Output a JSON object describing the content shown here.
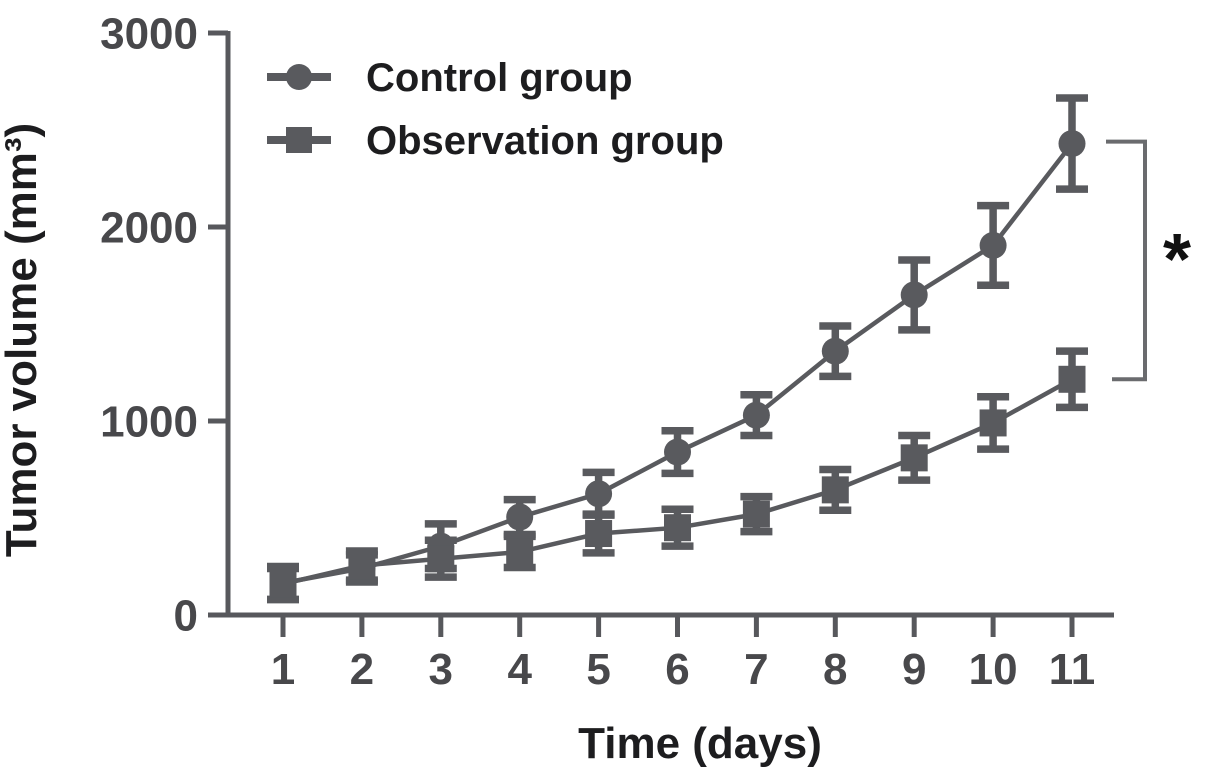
{
  "figure": {
    "background": "#ffffff",
    "series_color": "#595a5e",
    "axis_color": "#57585c",
    "tick_label_color": "#48484b",
    "title_color": "#1d1d1f",
    "bracket_color": "#6a6b6e",
    "significance_color": "#111111"
  },
  "chart_data": {
    "type": "line",
    "title": "",
    "xlabel": "Time (days)",
    "ylabel": "Tumor volume (mm³)",
    "x": [
      1,
      2,
      3,
      4,
      5,
      6,
      7,
      8,
      9,
      10,
      11
    ],
    "xtick_labels": [
      "1",
      "2",
      "3",
      "4",
      "5",
      "6",
      "7",
      "8",
      "9",
      "10",
      "11"
    ],
    "ylim": [
      0,
      3000
    ],
    "yticks": [
      0,
      1000,
      2000,
      3000
    ],
    "ytick_labels": [
      "0",
      "1000",
      "2000",
      "3000"
    ],
    "grid": false,
    "legend_position": "top-left-inside",
    "error_bars": true,
    "series": [
      {
        "name": "Control group",
        "marker": "circle",
        "values": [
          165,
          240,
          355,
          505,
          625,
          840,
          1030,
          1360,
          1650,
          1905,
          2430
        ],
        "errors": [
          85,
          70,
          115,
          90,
          110,
          110,
          105,
          130,
          180,
          205,
          235
        ]
      },
      {
        "name": "Observation group",
        "marker": "square",
        "values": [
          160,
          255,
          290,
          325,
          420,
          450,
          520,
          645,
          810,
          990,
          1215
        ],
        "errors": [
          80,
          75,
          95,
          80,
          100,
          95,
          90,
          105,
          115,
          135,
          145
        ]
      }
    ],
    "annotation": {
      "symbol": "*",
      "type": "significance-bracket",
      "connects_x": 11,
      "between_series": [
        "Control group",
        "Observation group"
      ]
    }
  }
}
